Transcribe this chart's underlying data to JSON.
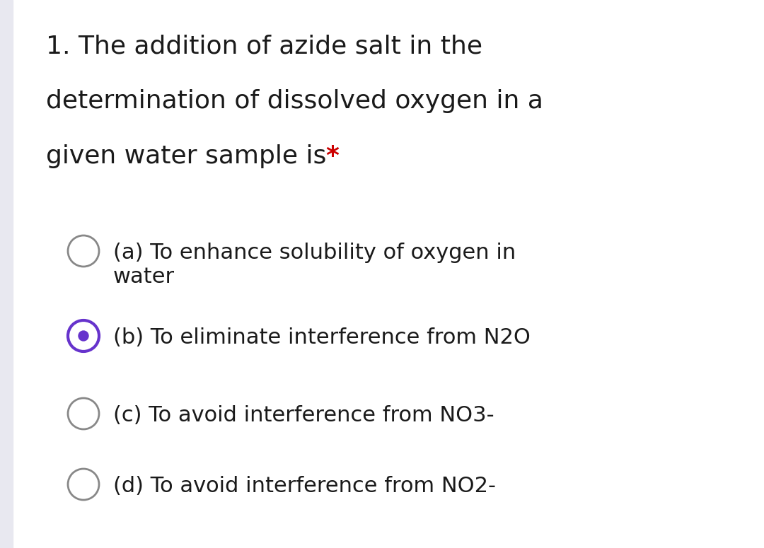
{
  "background_color": "#ffffff",
  "left_bar_color": "#e8e8f0",
  "question_text_lines": [
    "1. The addition of azide salt in the",
    "determination of dissolved oxygen in a",
    "given water sample is "
  ],
  "asterisk": "*",
  "asterisk_color": "#cc0000",
  "options": [
    "(a) To enhance solubility of oxygen in\nwater",
    "(b) To eliminate interference from N2O",
    "(c) To avoid interference from NO3-",
    "(d) To avoid interference from NO2-"
  ],
  "selected_option": 1,
  "text_color": "#1a1a1a",
  "circle_color_unselected": "#888888",
  "circle_color_selected": "#6633cc",
  "circle_fill_selected": "#6633cc",
  "font_size_question": 26,
  "font_size_option": 22,
  "fig_width": 10.8,
  "fig_height": 7.75,
  "dpi": 100
}
